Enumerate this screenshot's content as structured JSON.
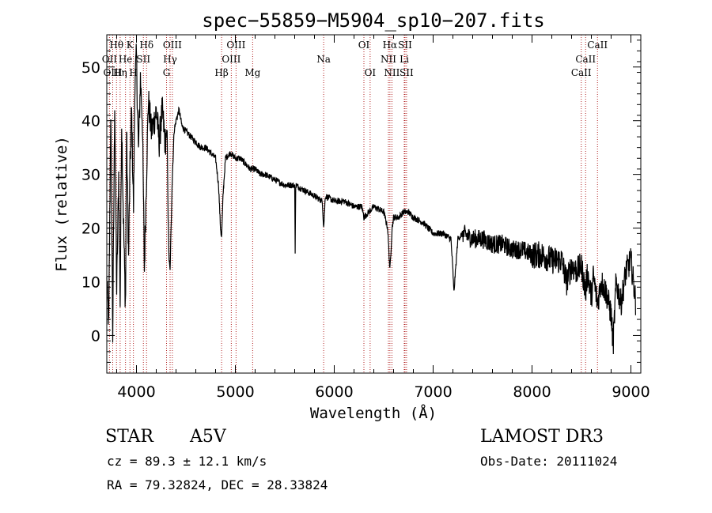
{
  "chart_data": {
    "type": "line",
    "title": "spec−55859−M5904_sp10−207.fits",
    "xlabel": "Wavelength (Å)",
    "ylabel": "Flux (relative)",
    "xlim": [
      3700,
      9100
    ],
    "ylim": [
      -7,
      56
    ],
    "xticks": [
      4000,
      5000,
      6000,
      7000,
      8000,
      9000
    ],
    "yticks": [
      0,
      10,
      20,
      30,
      40,
      50
    ],
    "series": [
      {
        "name": "spectrum",
        "x": [
          3700,
          3720,
          3740,
          3760,
          3780,
          3800,
          3820,
          3835,
          3850,
          3870,
          3889,
          3900,
          3920,
          3933,
          3950,
          3970,
          3985,
          4000,
          4020,
          4040,
          4060,
          4080,
          4102,
          4120,
          4150,
          4180,
          4200,
          4230,
          4260,
          4290,
          4310,
          4320,
          4330,
          4340,
          4350,
          4360,
          4380,
          4400,
          4430,
          4460,
          4500,
          4550,
          4600,
          4650,
          4700,
          4750,
          4800,
          4830,
          4850,
          4861,
          4875,
          4900,
          4950,
          5000,
          5050,
          5100,
          5150,
          5200,
          5250,
          5300,
          5400,
          5500,
          5600,
          5605,
          5610,
          5700,
          5800,
          5880,
          5893,
          5910,
          6000,
          6100,
          6200,
          6280,
          6300,
          6400,
          6500,
          6540,
          6563,
          6585,
          6600,
          6650,
          6700,
          6750,
          6800,
          6900,
          7000,
          7100,
          7180,
          7200,
          7210,
          7250,
          7300,
          7400,
          7500,
          7600,
          7700,
          7800,
          7900,
          8000,
          8100,
          8200,
          8300,
          8350,
          8400,
          8450,
          8500,
          8542,
          8560,
          8600,
          8620,
          8662,
          8700,
          8750,
          8800,
          8820,
          8850,
          8900,
          8950,
          9000,
          9050
        ],
        "values": [
          10,
          2,
          42,
          0,
          44,
          8,
          30,
          6,
          40,
          20,
          5,
          38,
          14,
          30,
          42,
          24,
          48,
          52,
          34,
          48,
          40,
          12,
          30,
          44,
          38,
          40,
          42,
          36,
          42,
          36,
          38,
          22,
          14,
          12,
          20,
          28,
          38,
          40,
          42,
          39,
          38,
          37,
          36,
          35,
          35,
          34,
          33,
          28,
          20,
          18,
          26,
          33,
          34,
          33,
          33,
          32,
          31,
          31,
          30,
          30,
          29,
          28,
          28,
          15,
          28,
          27,
          26,
          25,
          20,
          26,
          25,
          25,
          24,
          24,
          22,
          24,
          23,
          20,
          12,
          20,
          22,
          22,
          23,
          23,
          22,
          21,
          19,
          19,
          18,
          12,
          8,
          18,
          19,
          18,
          18,
          17,
          17,
          16,
          16,
          15,
          15,
          14,
          14,
          10,
          13,
          12,
          13,
          8,
          12,
          7,
          11,
          6,
          10,
          8,
          4,
          -2,
          10,
          6,
          12,
          14,
          6
        ]
      }
    ],
    "lines": [
      {
        "label": "Hθ",
        "x": 3798,
        "row": 0
      },
      {
        "label": "OII",
        "x": 3727,
        "row": 1
      },
      {
        "label": "OIII",
        "x": 3760,
        "row": 2
      },
      {
        "label": "Hη",
        "x": 3835,
        "row": 2
      },
      {
        "label": "K",
        "x": 3934,
        "row": 0
      },
      {
        "label": "He",
        "x": 3889,
        "row": 1
      },
      {
        "label": "SII",
        "x": 4070,
        "row": 1
      },
      {
        "label": "H",
        "x": 3969,
        "row": 2
      },
      {
        "label": "Hδ",
        "x": 4102,
        "row": 0
      },
      {
        "label": "OIII",
        "x": 4363,
        "row": 0
      },
      {
        "label": "Hγ",
        "x": 4340,
        "row": 1
      },
      {
        "label": "G",
        "x": 4304,
        "row": 2
      },
      {
        "label": "Hβ",
        "x": 4861,
        "row": 2
      },
      {
        "label": "OIII",
        "x": 5007,
        "row": 0
      },
      {
        "label": "OIII",
        "x": 4959,
        "row": 1
      },
      {
        "label": "Mg",
        "x": 5175,
        "row": 2
      },
      {
        "label": "Na",
        "x": 5893,
        "row": 1
      },
      {
        "label": "OI",
        "x": 6300,
        "row": 0
      },
      {
        "label": "OI",
        "x": 6363,
        "row": 2
      },
      {
        "label": "Hα",
        "x": 6563,
        "row": 0
      },
      {
        "label": "NII",
        "x": 6548,
        "row": 1
      },
      {
        "label": "NII",
        "x": 6583,
        "row": 2
      },
      {
        "label": "SII",
        "x": 6716,
        "row": 0
      },
      {
        "label": "Li",
        "x": 6708,
        "row": 1
      },
      {
        "label": "SII",
        "x": 6731,
        "row": 2
      },
      {
        "label": "CaII",
        "x": 8662,
        "row": 0
      },
      {
        "label": "CaII",
        "x": 8542,
        "row": 1
      },
      {
        "label": "CaII",
        "x": 8498,
        "row": 2
      }
    ]
  },
  "info": {
    "object_class": "STAR",
    "subclass": "A5V",
    "survey": "LAMOST DR3",
    "cz": "cz = 89.3 ± 12.1 km/s",
    "obs_date": "Obs-Date: 20111024",
    "coords": "RA =  79.32824, DEC =  28.33824"
  }
}
